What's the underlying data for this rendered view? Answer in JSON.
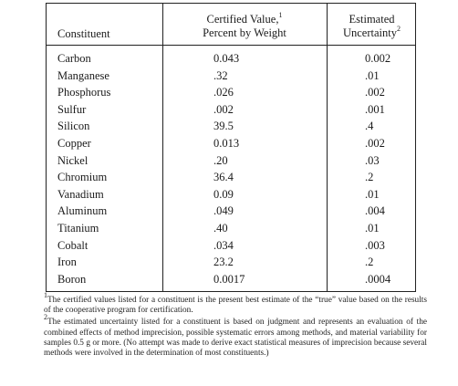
{
  "table": {
    "headers": {
      "constituent": "Constituent",
      "certified_line1": "Certified Value,",
      "certified_sup": "1",
      "certified_line2": "Percent by Weight",
      "uncertainty_line1": "Estimated",
      "uncertainty_line2": "Uncertainty",
      "uncertainty_sup": "2"
    },
    "rows": [
      {
        "name": "Carbon",
        "value": "0.043",
        "uncertainty": "0.002"
      },
      {
        "name": "Manganese",
        "value": ".32",
        "uncertainty": ".01"
      },
      {
        "name": "Phosphorus",
        "value": ".026",
        "uncertainty": ".002"
      },
      {
        "name": "Sulfur",
        "value": ".002",
        "uncertainty": ".001"
      },
      {
        "name": "Silicon",
        "value": "39.5",
        "uncertainty": ".4"
      },
      {
        "name": "Copper",
        "value": "0.013",
        "uncertainty": ".002"
      },
      {
        "name": "Nickel",
        "value": ".20",
        "uncertainty": ".03"
      },
      {
        "name": "Chromium",
        "value": "36.4",
        "uncertainty": ".2"
      },
      {
        "name": "Vanadium",
        "value": "0.09",
        "uncertainty": ".01"
      },
      {
        "name": "Aluminum",
        "value": ".049",
        "uncertainty": ".004"
      },
      {
        "name": "Titanium",
        "value": ".40",
        "uncertainty": ".01"
      },
      {
        "name": "Cobalt",
        "value": ".034",
        "uncertainty": ".003"
      },
      {
        "name": "Iron",
        "value": "23.2",
        "uncertainty": ".2"
      },
      {
        "name": "Boron",
        "value": "0.0017",
        "uncertainty": ".0004"
      }
    ]
  },
  "footnotes": [
    {
      "mark": "1",
      "text": "The certified values listed for a constituent is the present best estimate of the “true” value based on the results of the cooperative program for certification."
    },
    {
      "mark": "2",
      "text": "The estimated uncertainty listed for a constituent is based on judgment and represents an evaluation of the combined effects of method imprecision, possible systematic errors among methods, and material variability for samples 0.5 g or more. (No attempt was made to derive exact statistical measures of imprecision because several methods were involved in the determination of most constituents.)"
    }
  ]
}
